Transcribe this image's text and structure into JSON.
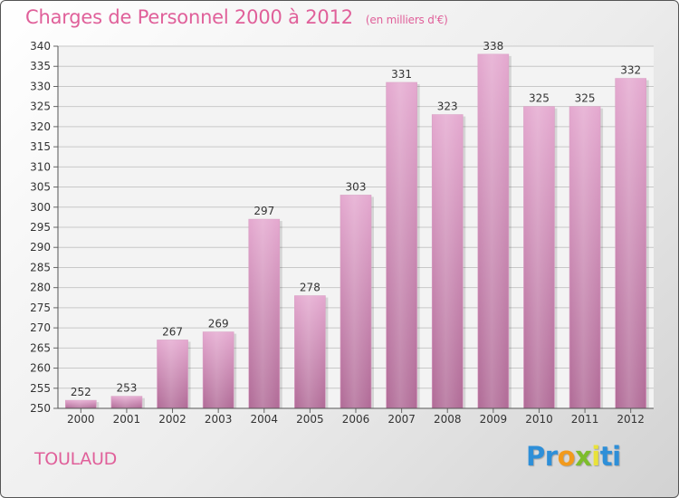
{
  "title": "Charges de Personnel 2000 à 2012",
  "subtitle": "(en milliers d'€)",
  "commune": "TOULAUD",
  "logo": {
    "letters": [
      "P",
      "r",
      "o",
      "x",
      "i",
      "t",
      "i"
    ],
    "colors": [
      "#2e8fd8",
      "#2e8fd8",
      "#f29a1c",
      "#7dbd2c",
      "#e9e23a",
      "#2e8fd8",
      "#2e8fd8"
    ]
  },
  "colors": {
    "bar_light": "#e4a8cf",
    "bar_dark": "#b06a96",
    "accent": "#e0609a"
  },
  "chart_data": {
    "type": "bar",
    "categories": [
      "2000",
      "2001",
      "2002",
      "2003",
      "2004",
      "2005",
      "2006",
      "2007",
      "2008",
      "2009",
      "2010",
      "2011",
      "2012"
    ],
    "values": [
      252,
      253,
      267,
      269,
      297,
      278,
      303,
      331,
      323,
      338,
      325,
      325,
      332
    ],
    "title": "Charges de Personnel 2000 à 2012",
    "subtitle": "(en milliers d'€)",
    "ylim": [
      250,
      340
    ],
    "yticks": [
      250,
      255,
      260,
      265,
      270,
      275,
      280,
      285,
      290,
      295,
      300,
      305,
      310,
      315,
      320,
      325,
      330,
      335,
      340
    ],
    "grid": true
  }
}
